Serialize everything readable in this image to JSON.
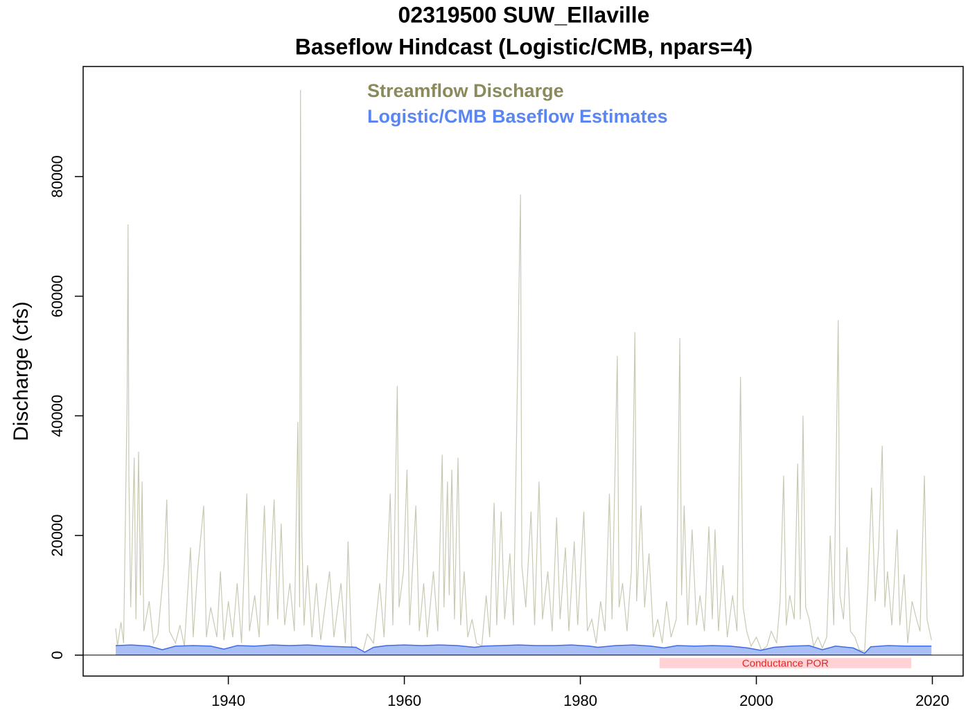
{
  "chart_data": {
    "type": "line",
    "title": "02319500 SUW_Ellaville",
    "subtitle": "Baseflow Hindcast (Logistic/CMB, npars=4)",
    "y_label": "Discharge (cfs)",
    "xlim": [
      1923.5,
      2023.5
    ],
    "ylim": [
      -3500,
      98400
    ],
    "xticks": [
      1940,
      1960,
      1980,
      2000,
      2020
    ],
    "yticks": [
      0,
      20000,
      40000,
      60000,
      80000
    ],
    "zero_line": true,
    "series": [
      {
        "name": "Streamflow Discharge",
        "color": "#c9c9b3",
        "legend_color": "#8a8a5c",
        "fill": null,
        "x": [
          1927.2,
          1927.4,
          1927.8,
          1928.1,
          1928.5,
          1928.6,
          1928.7,
          1928.9,
          1929.3,
          1929.5,
          1929.8,
          1930.0,
          1930.2,
          1930.4,
          1931.0,
          1931.5,
          1932.0,
          1932.7,
          1933.0,
          1933.3,
          1934.0,
          1934.5,
          1935.0,
          1935.7,
          1936.0,
          1936.5,
          1937.2,
          1937.5,
          1938.0,
          1938.7,
          1939.1,
          1939.5,
          1940.0,
          1940.5,
          1941.0,
          1941.5,
          1942.1,
          1942.4,
          1943.0,
          1943.5,
          1944.1,
          1944.5,
          1945.2,
          1945.6,
          1946.0,
          1946.4,
          1947.0,
          1947.5,
          1947.9,
          1948.1,
          1948.2,
          1948.35,
          1948.6,
          1949.0,
          1949.5,
          1950.0,
          1950.5,
          1951.5,
          1952.0,
          1952.8,
          1953.3,
          1953.6,
          1954.0,
          1954.7,
          1955.3,
          1955.8,
          1956.5,
          1957.2,
          1957.7,
          1958.4,
          1958.7,
          1959.2,
          1959.4,
          1959.9,
          1960.3,
          1960.6,
          1961.3,
          1961.7,
          1962.2,
          1962.6,
          1963.3,
          1963.8,
          1964.3,
          1964.5,
          1964.9,
          1965.1,
          1965.4,
          1965.7,
          1966.1,
          1966.4,
          1966.8,
          1967.2,
          1967.7,
          1968.2,
          1968.8,
          1969.3,
          1969.7,
          1970.2,
          1970.5,
          1971.0,
          1971.4,
          1972.0,
          1972.4,
          1973.2,
          1973.35,
          1973.8,
          1974.4,
          1974.8,
          1975.3,
          1975.7,
          1976.3,
          1976.8,
          1977.3,
          1977.7,
          1978.3,
          1978.7,
          1979.3,
          1979.7,
          1980.4,
          1980.8,
          1981.3,
          1981.8,
          1982.3,
          1982.8,
          1983.3,
          1983.6,
          1984.2,
          1984.4,
          1984.8,
          1985.3,
          1985.8,
          1986.2,
          1986.4,
          1986.9,
          1987.3,
          1987.8,
          1988.3,
          1988.8,
          1989.3,
          1989.8,
          1990.3,
          1990.9,
          1991.3,
          1991.5,
          1991.8,
          1992.2,
          1992.7,
          1993.2,
          1993.6,
          1994.1,
          1994.6,
          1995.0,
          1995.3,
          1995.7,
          1996.2,
          1996.7,
          1997.3,
          1997.8,
          1998.2,
          1998.5,
          1998.9,
          1999.4,
          2000.0,
          2000.6,
          2001.2,
          2001.7,
          2002.3,
          2002.7,
          2003.1,
          2003.4,
          2003.8,
          2004.3,
          2004.7,
          2005.0,
          2005.3,
          2005.6,
          2006.0,
          2006.5,
          2007.0,
          2007.5,
          2008.0,
          2008.4,
          2008.8,
          2009.3,
          2009.5,
          2009.9,
          2010.3,
          2010.7,
          2011.2,
          2011.7,
          2012.3,
          2012.7,
          2013.1,
          2013.5,
          2013.9,
          2014.3,
          2014.6,
          2014.9,
          2015.4,
          2016.0,
          2016.3,
          2016.8,
          2017.2,
          2017.7,
          2018.2,
          2018.6,
          2019.1,
          2019.4,
          2019.9
        ],
        "values": [
          4500,
          1500,
          5500,
          2000,
          43000,
          72000,
          30000,
          8000,
          33000,
          6000,
          34000,
          10000,
          29000,
          4000,
          9000,
          2000,
          3500,
          15000,
          26000,
          4000,
          2000,
          5000,
          1500,
          18000,
          3000,
          14000,
          25000,
          3000,
          8000,
          3000,
          14000,
          2500,
          9000,
          3000,
          12000,
          2000,
          27000,
          4000,
          10000,
          3000,
          25000,
          5000,
          26000,
          6000,
          22000,
          5000,
          12000,
          4000,
          39000,
          8000,
          94500,
          20000,
          5000,
          15000,
          3000,
          12000,
          2500,
          14000,
          3000,
          12000,
          2000,
          19000,
          1500,
          900,
          600,
          3500,
          2000,
          12000,
          3000,
          27000,
          5000,
          45000,
          8000,
          14000,
          31000,
          5000,
          25000,
          4000,
          12000,
          3000,
          14000,
          4000,
          33500,
          8000,
          29000,
          10000,
          31000,
          6000,
          33000,
          5000,
          14000,
          3000,
          6000,
          2000,
          1500,
          10000,
          3000,
          25500,
          5000,
          24000,
          6000,
          17000,
          5000,
          77000,
          15000,
          8000,
          24000,
          5000,
          29000,
          6000,
          14000,
          4000,
          23000,
          6000,
          18000,
          4000,
          19000,
          5000,
          24000,
          4000,
          6000,
          2000,
          9000,
          4000,
          27000,
          6000,
          50000,
          8000,
          12000,
          4000,
          14000,
          54000,
          9000,
          25000,
          8000,
          17000,
          3000,
          6000,
          2000,
          9000,
          3000,
          6000,
          53000,
          10000,
          25000,
          5000,
          21000,
          5000,
          10000,
          4000,
          21500,
          6000,
          21000,
          4000,
          15000,
          3000,
          10000,
          4000,
          46500,
          8000,
          4000,
          1500,
          3000,
          800,
          1500,
          4000,
          2000,
          9000,
          30000,
          5000,
          10000,
          6000,
          32000,
          6000,
          40000,
          8000,
          6000,
          1500,
          3000,
          1200,
          3000,
          20000,
          5000,
          56000,
          10000,
          6000,
          18000,
          4000,
          3000,
          900,
          600,
          12000,
          28000,
          9000,
          18000,
          35000,
          8000,
          14000,
          5000,
          21000,
          5000,
          13500,
          2000,
          9000,
          6000,
          4000,
          30000,
          6000,
          2500
        ]
      },
      {
        "name": "Logistic/CMB Baseflow Estimates",
        "color": "#3d6be8",
        "legend_color": "#5b86f0",
        "fill": "#a9bff6",
        "x": [
          1927.2,
          1929,
          1931,
          1932.5,
          1934,
          1936,
          1938,
          1939.5,
          1941,
          1943,
          1945,
          1947,
          1949,
          1951,
          1953,
          1954.5,
          1955.5,
          1956.5,
          1958,
          1960,
          1962,
          1964,
          1966,
          1968,
          1969,
          1971,
          1973,
          1975,
          1977,
          1979,
          1981,
          1982,
          1984,
          1986,
          1988,
          1989.5,
          1991,
          1993,
          1995,
          1997,
          1999,
          2000.5,
          2002,
          2004,
          2006,
          2007.5,
          2009,
          2011,
          2012.3,
          2013,
          2015,
          2017,
          2019.9
        ],
        "values": [
          1600,
          1700,
          1500,
          900,
          1500,
          1600,
          1500,
          1000,
          1600,
          1500,
          1700,
          1600,
          1700,
          1500,
          1400,
          1300,
          500,
          1300,
          1600,
          1700,
          1600,
          1700,
          1600,
          1300,
          1500,
          1600,
          1700,
          1600,
          1600,
          1700,
          1500,
          1300,
          1600,
          1700,
          1500,
          1200,
          1600,
          1500,
          1600,
          1500,
          1200,
          800,
          1300,
          1500,
          1600,
          900,
          1500,
          1200,
          300,
          1400,
          1600,
          1500,
          1500
        ]
      }
    ],
    "band": {
      "label": "Conductance POR",
      "start": 1989,
      "end": 2017.6,
      "color": "#ffd3d6",
      "text_color": "#ee2222"
    }
  }
}
